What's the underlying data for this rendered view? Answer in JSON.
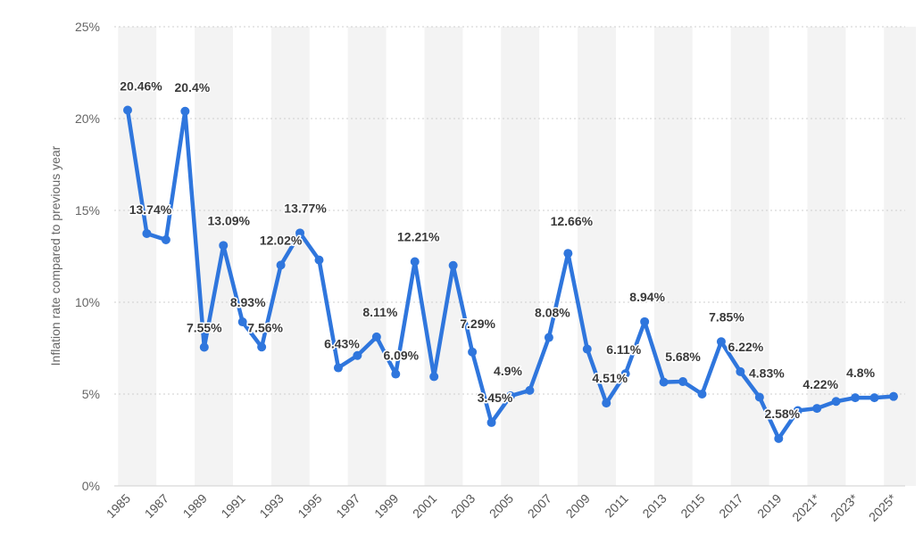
{
  "chart_data": {
    "type": "line",
    "ylabel": "Inflation rate compared to previous year",
    "xlabel": "",
    "ylim": [
      0,
      25
    ],
    "yticks": [
      0,
      5,
      10,
      15,
      20,
      25
    ],
    "ytick_labels": [
      "0%",
      "5%",
      "10%",
      "15%",
      "20%",
      "25%"
    ],
    "grid": true,
    "colors": {
      "line": "#2f76dd",
      "grid": "#cfcfcf",
      "band": "#f3f3f3"
    },
    "x": [
      "1985",
      "1986",
      "1987",
      "1988",
      "1989",
      "1990",
      "1991",
      "1992",
      "1993",
      "1994",
      "1995",
      "1996",
      "1997",
      "1998",
      "1999",
      "2000",
      "2001",
      "2002",
      "2003",
      "2004",
      "2005",
      "2006",
      "2007",
      "2008",
      "2009",
      "2010",
      "2011",
      "2012",
      "2013",
      "2014",
      "2015",
      "2016",
      "2017",
      "2018",
      "2019",
      "2020",
      "2021*",
      "2022*",
      "2023*",
      "2024*",
      "2025*"
    ],
    "x_tick_labels": [
      "1985",
      "",
      "1987",
      "",
      "1989",
      "",
      "1991",
      "",
      "1993",
      "",
      "1995",
      "",
      "1997",
      "",
      "1999",
      "",
      "2001",
      "",
      "2003",
      "",
      "2005",
      "",
      "2007",
      "",
      "2009",
      "",
      "2011",
      "",
      "2013",
      "",
      "2015",
      "",
      "2017",
      "",
      "2019",
      "",
      "2021*",
      "",
      "2023*",
      "",
      "2025*"
    ],
    "values": [
      20.46,
      13.74,
      13.4,
      20.4,
      7.55,
      13.09,
      8.93,
      7.56,
      12.02,
      13.77,
      12.3,
      6.43,
      7.1,
      8.11,
      6.09,
      12.21,
      5.95,
      12.0,
      7.29,
      3.45,
      4.9,
      5.2,
      8.08,
      12.66,
      7.45,
      4.51,
      6.11,
      8.94,
      5.65,
      5.68,
      5.0,
      7.85,
      6.22,
      4.83,
      2.58,
      4.1,
      4.22,
      4.6,
      4.8,
      4.8,
      4.87
    ],
    "data_labels": [
      "20.46%",
      "13.74%",
      "",
      "20.4%",
      "7.55%",
      "13.09%",
      "8.93%",
      "7.56%",
      "12.02%",
      "13.77%",
      "",
      "6.43%",
      "",
      "8.11%",
      "6.09%",
      "12.21%",
      "",
      "",
      "7.29%",
      "3.45%",
      "4.9%",
      "",
      "8.08%",
      "12.66%",
      "",
      "4.51%",
      "6.11%",
      "8.94%",
      "",
      "5.68%",
      "",
      "7.85%",
      "6.22%",
      "4.83%",
      "2.58%",
      "",
      "4.22%",
      "",
      "4.8%",
      "",
      ""
    ]
  }
}
